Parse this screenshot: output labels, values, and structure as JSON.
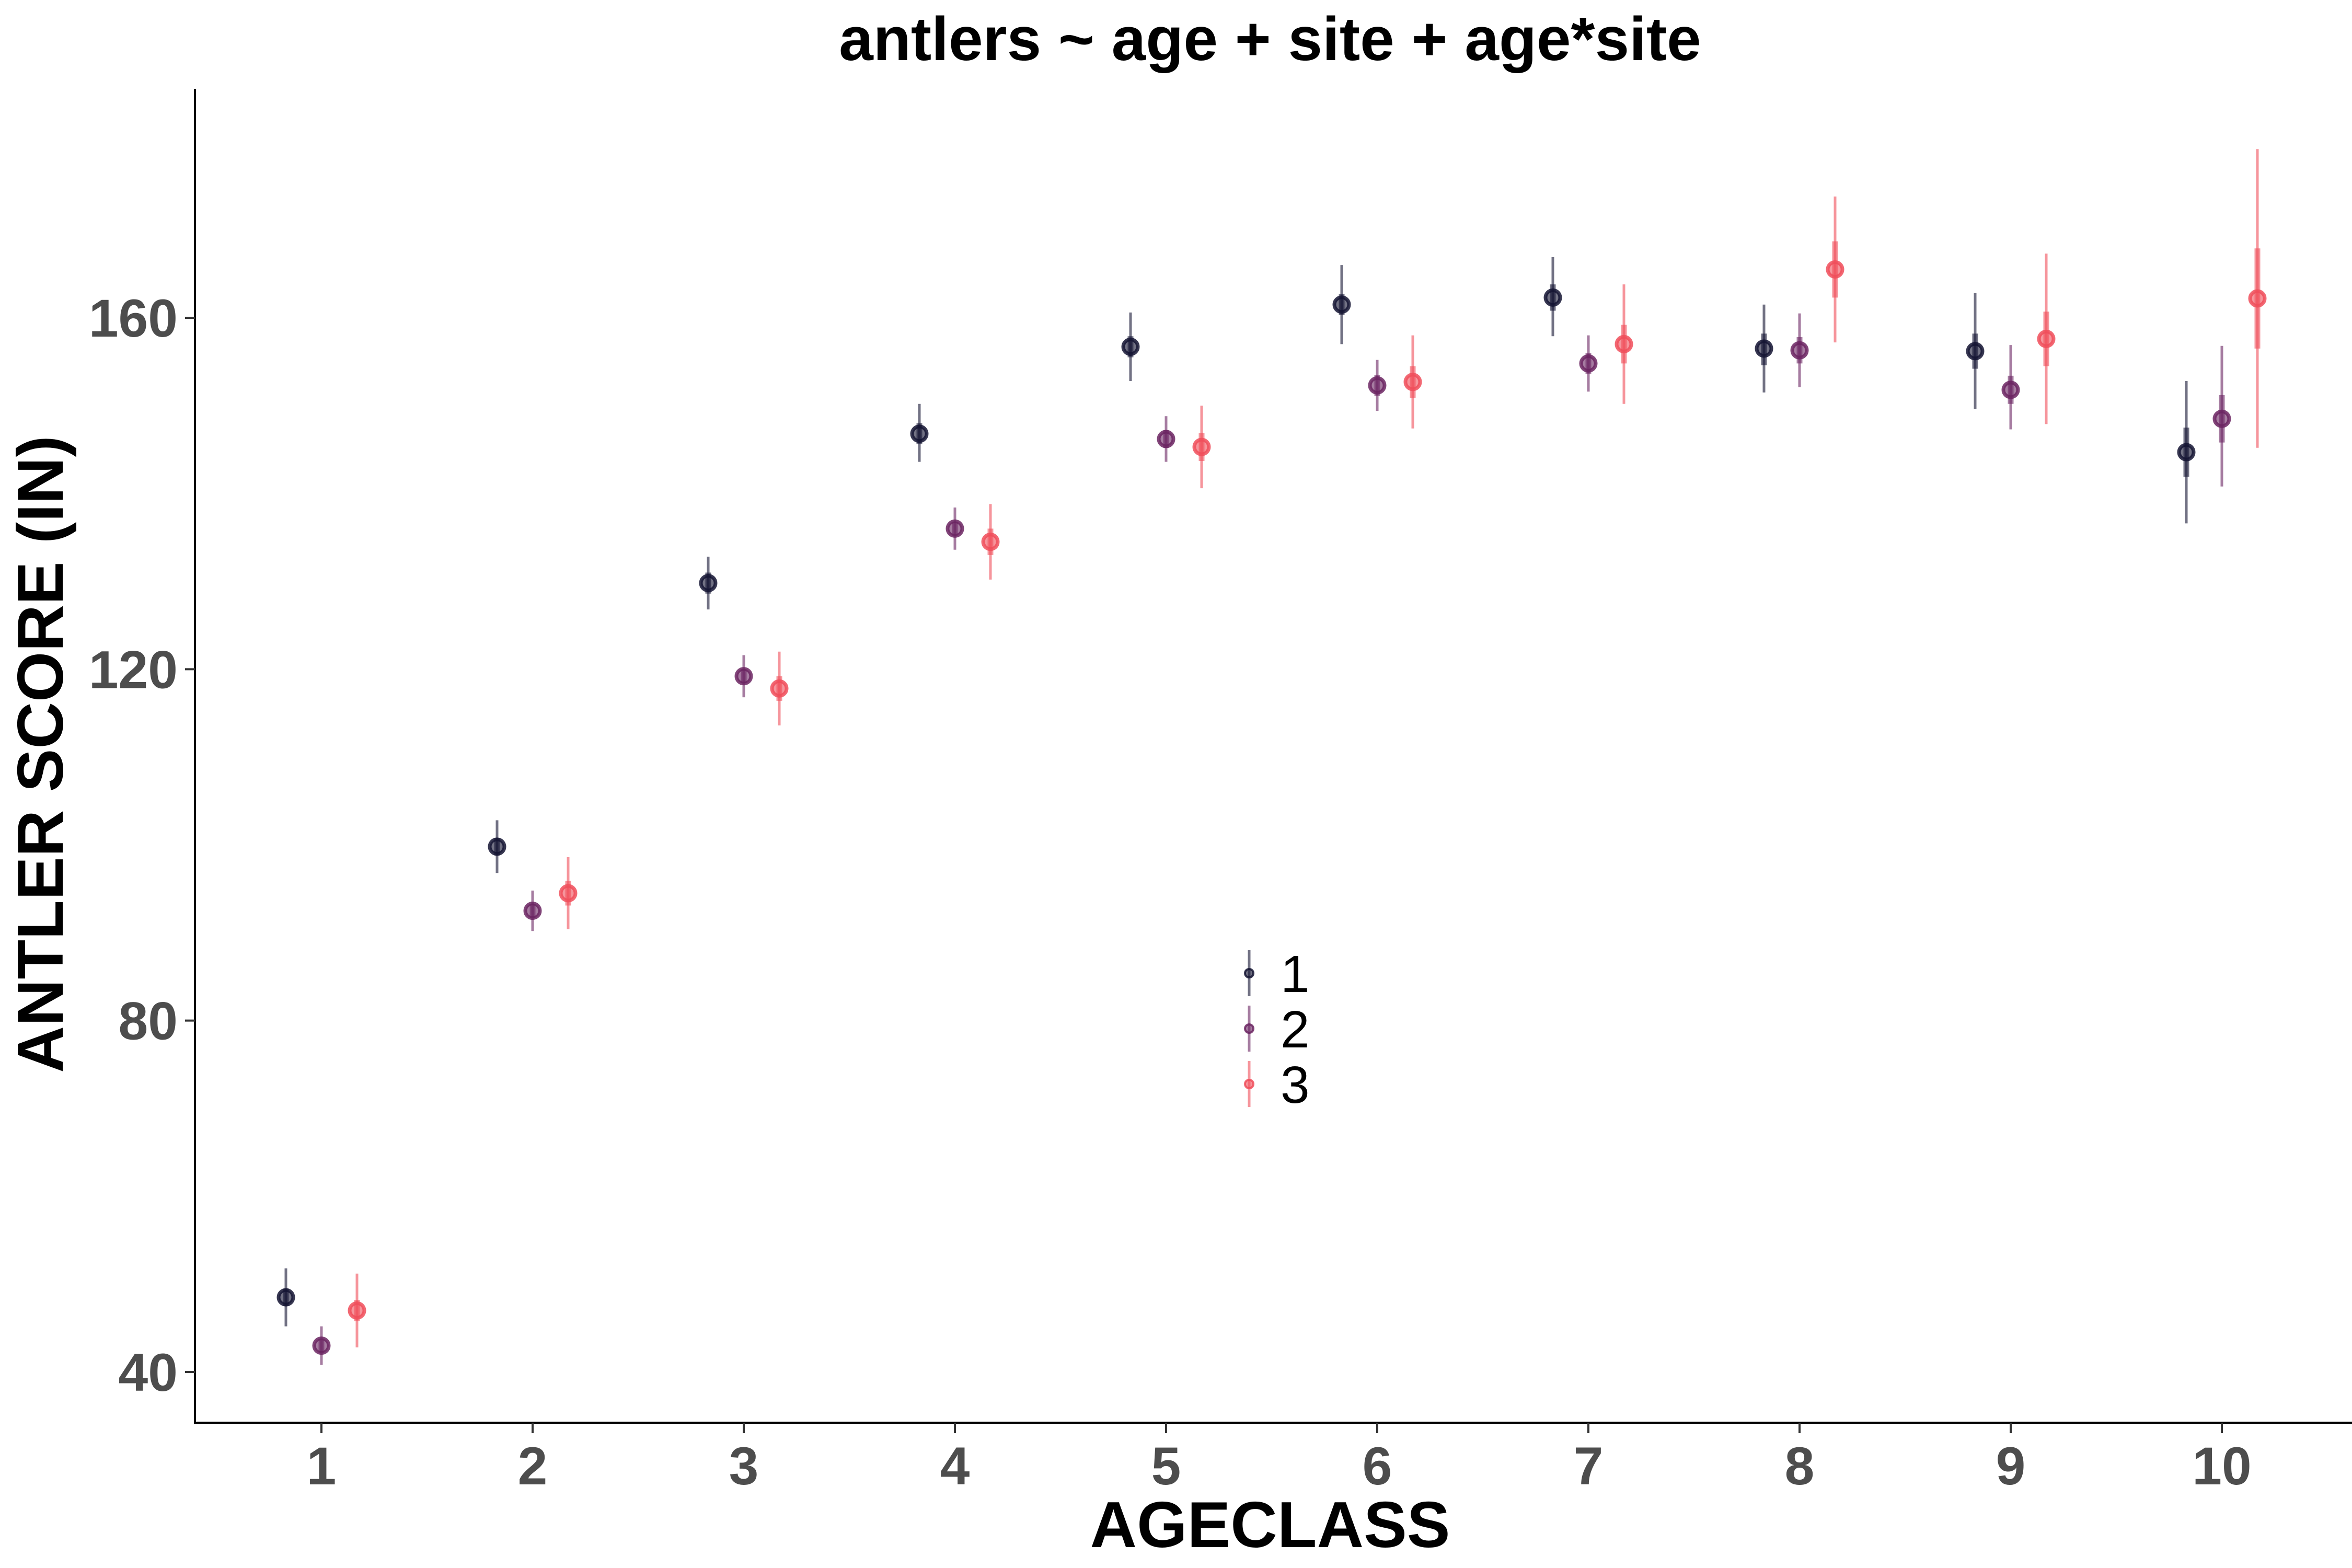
{
  "chart_data": {
    "type": "scatter",
    "title": "antlers ~ age + site + age*site",
    "xlabel": "AGECLASS",
    "ylabel": "ANTLER SCORE (IN)",
    "categories": [
      "1",
      "2",
      "3",
      "4",
      "5",
      "6",
      "7",
      "8",
      "9",
      "10"
    ],
    "yticks": [
      40,
      80,
      120,
      160
    ],
    "ylim": [
      34,
      187
    ],
    "grid": false,
    "legend_position": "center",
    "series": [
      {
        "name": "1",
        "color": "#141432",
        "values": [
          48.5,
          99.8,
          129.8,
          146.8,
          156.7,
          161.5,
          162.3,
          156.5,
          156.2,
          144.7
        ],
        "ci_inner": [
          [
            47.5,
            49.5
          ],
          [
            98.8,
            100.8
          ],
          [
            128.6,
            131.0
          ],
          [
            145.6,
            148.0
          ],
          [
            155.5,
            157.9
          ],
          [
            160.3,
            162.7
          ],
          [
            160.8,
            163.8
          ],
          [
            154.6,
            158.2
          ],
          [
            154.2,
            158.2
          ],
          [
            141.9,
            147.5
          ]
        ],
        "ci_outer": [
          [
            45.2,
            51.8
          ],
          [
            96.8,
            102.8
          ],
          [
            126.8,
            132.8
          ],
          [
            143.6,
            150.2
          ],
          [
            152.8,
            160.6
          ],
          [
            157.0,
            166.0
          ],
          [
            157.9,
            166.9
          ],
          [
            151.5,
            161.5
          ],
          [
            149.6,
            162.8
          ],
          [
            136.6,
            152.8
          ]
        ]
      },
      {
        "name": "2",
        "color": "#6b2462",
        "values": [
          43.0,
          92.5,
          119.2,
          136.0,
          146.2,
          152.3,
          154.8,
          156.3,
          151.8,
          148.5
        ],
        "ci_inner": [
          [
            42.2,
            43.8
          ],
          [
            91.7,
            93.3
          ],
          [
            118.4,
            120.0
          ],
          [
            135.2,
            136.8
          ],
          [
            145.2,
            147.2
          ],
          [
            151.1,
            153.5
          ],
          [
            153.6,
            156.0
          ],
          [
            154.8,
            157.8
          ],
          [
            150.2,
            153.4
          ],
          [
            145.8,
            151.2
          ]
        ],
        "ci_outer": [
          [
            40.8,
            45.2
          ],
          [
            90.2,
            94.8
          ],
          [
            116.8,
            121.6
          ],
          [
            133.6,
            138.4
          ],
          [
            143.6,
            148.8
          ],
          [
            149.4,
            155.2
          ],
          [
            151.6,
            158.0
          ],
          [
            152.1,
            160.5
          ],
          [
            147.3,
            156.9
          ],
          [
            140.8,
            156.8
          ]
        ]
      },
      {
        "name": "3",
        "color": "#f04e5a",
        "values": [
          47.0,
          94.5,
          117.8,
          134.5,
          145.3,
          152.7,
          157.0,
          165.5,
          157.6,
          162.2
        ],
        "ci_inner": [
          [
            45.8,
            48.2
          ],
          [
            93.1,
            95.9
          ],
          [
            116.4,
            119.2
          ],
          [
            133.0,
            136.0
          ],
          [
            143.7,
            146.9
          ],
          [
            150.9,
            154.5
          ],
          [
            154.8,
            159.2
          ],
          [
            162.3,
            168.7
          ],
          [
            154.5,
            160.7
          ],
          [
            156.5,
            167.9
          ]
        ],
        "ci_outer": [
          [
            42.8,
            51.2
          ],
          [
            90.4,
            98.6
          ],
          [
            113.6,
            122.0
          ],
          [
            130.2,
            138.8
          ],
          [
            140.6,
            150.0
          ],
          [
            147.4,
            158.0
          ],
          [
            150.2,
            163.8
          ],
          [
            157.2,
            173.8
          ],
          [
            147.9,
            167.3
          ],
          [
            145.2,
            179.2
          ]
        ]
      }
    ]
  }
}
